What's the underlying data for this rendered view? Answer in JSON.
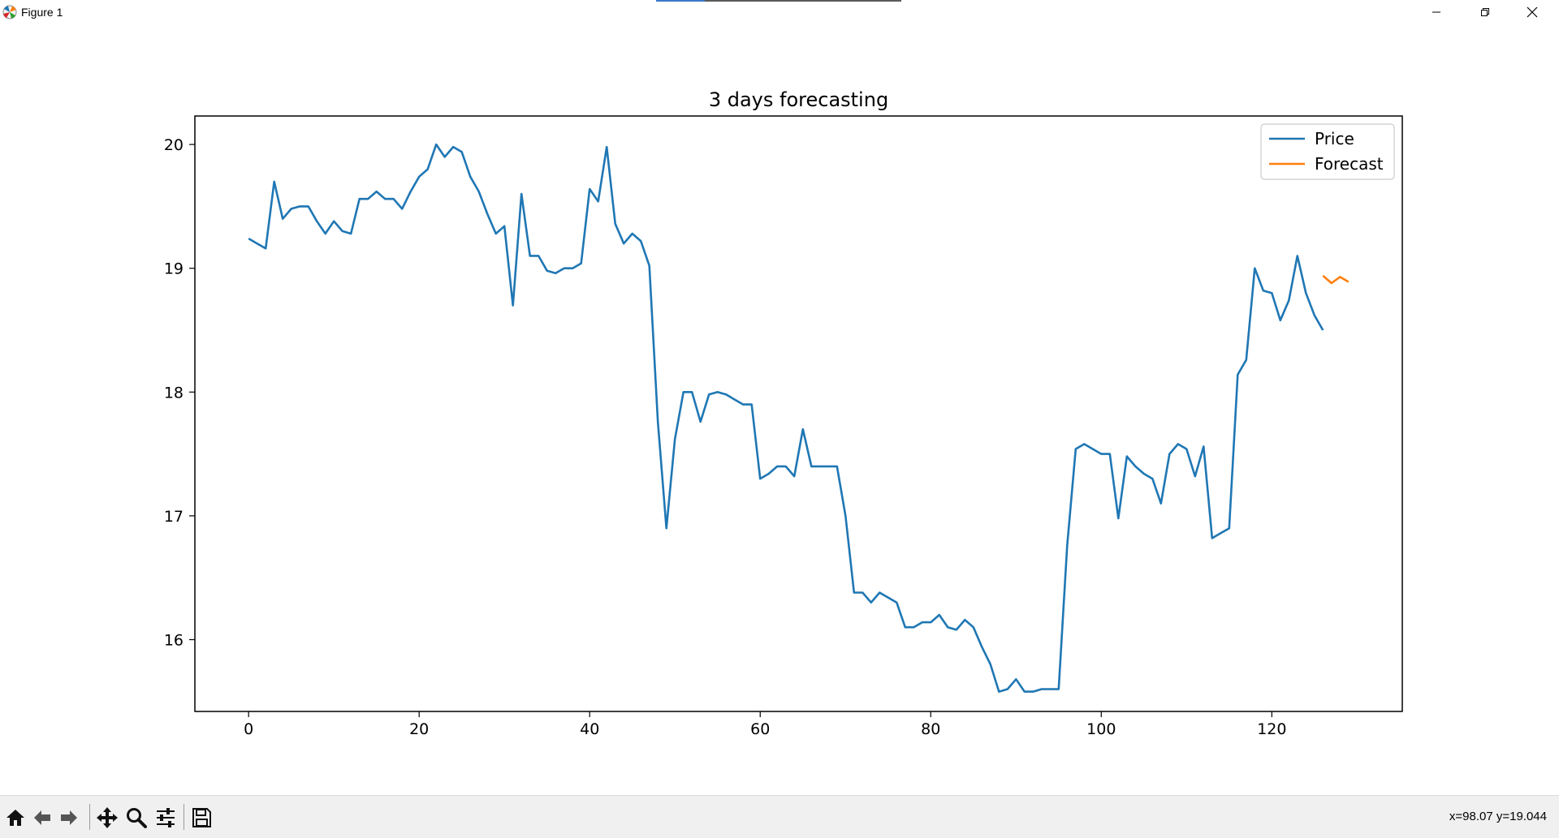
{
  "window": {
    "title": "Figure 1",
    "controls": [
      "minimize",
      "maximize",
      "close"
    ]
  },
  "toolbar": {
    "buttons": [
      {
        "name": "home-icon"
      },
      {
        "name": "back-arrow-icon"
      },
      {
        "name": "forward-arrow-icon"
      },
      {
        "name": "pan-icon"
      },
      {
        "name": "zoom-icon"
      },
      {
        "name": "configure-subplots-icon"
      },
      {
        "name": "save-icon"
      }
    ],
    "coords": "x=98.07 y=19.044"
  },
  "colors": {
    "price": "#1f77b4",
    "forecast": "#ff7f0e"
  },
  "chart_data": {
    "type": "line",
    "title": "3 days forecasting",
    "xlabel": "",
    "ylabel": "",
    "xlim": [
      -6.3,
      135.3
    ],
    "ylim": [
      15.42,
      20.23
    ],
    "xticks": [
      0,
      20,
      40,
      60,
      80,
      100,
      120
    ],
    "yticks": [
      16,
      17,
      18,
      19,
      20
    ],
    "grid": false,
    "legend_position": "top-right",
    "series": [
      {
        "name": "Price",
        "color": "#1f77b4",
        "x_start": 0,
        "values": [
          19.24,
          19.2,
          19.16,
          19.7,
          19.4,
          19.48,
          19.5,
          19.5,
          19.38,
          19.28,
          19.38,
          19.3,
          19.28,
          19.56,
          19.56,
          19.62,
          19.56,
          19.56,
          19.48,
          19.62,
          19.74,
          19.8,
          20.0,
          19.9,
          19.98,
          19.94,
          19.74,
          19.62,
          19.44,
          19.28,
          19.34,
          18.7,
          19.6,
          19.1,
          19.1,
          18.98,
          18.96,
          19.0,
          19.0,
          19.04,
          19.64,
          19.54,
          19.98,
          19.36,
          19.2,
          19.28,
          19.22,
          19.02,
          17.76,
          16.9,
          17.62,
          18.0,
          18.0,
          17.76,
          17.98,
          18.0,
          17.98,
          17.94,
          17.9,
          17.9,
          17.3,
          17.34,
          17.4,
          17.4,
          17.32,
          17.7,
          17.4,
          17.4,
          17.4,
          17.4,
          17.0,
          16.38,
          16.38,
          16.3,
          16.38,
          16.34,
          16.3,
          16.1,
          16.1,
          16.14,
          16.14,
          16.2,
          16.1,
          16.08,
          16.16,
          16.1,
          15.94,
          15.8,
          15.58,
          15.6,
          15.68,
          15.58,
          15.58,
          15.6,
          15.6,
          15.6,
          16.76,
          17.54,
          17.58,
          17.54,
          17.5,
          17.5,
          16.98,
          17.48,
          17.4,
          17.34,
          17.3,
          17.1,
          17.5,
          17.58,
          17.54,
          17.32,
          17.56,
          16.82,
          16.86,
          16.9,
          18.14,
          18.26,
          19.0,
          18.82,
          18.8,
          18.58,
          18.74,
          19.1,
          18.8,
          18.62,
          18.5
        ]
      },
      {
        "name": "Forecast",
        "color": "#ff7f0e",
        "x_start": 126,
        "values": [
          18.94,
          18.88,
          18.93,
          18.89
        ]
      }
    ]
  }
}
